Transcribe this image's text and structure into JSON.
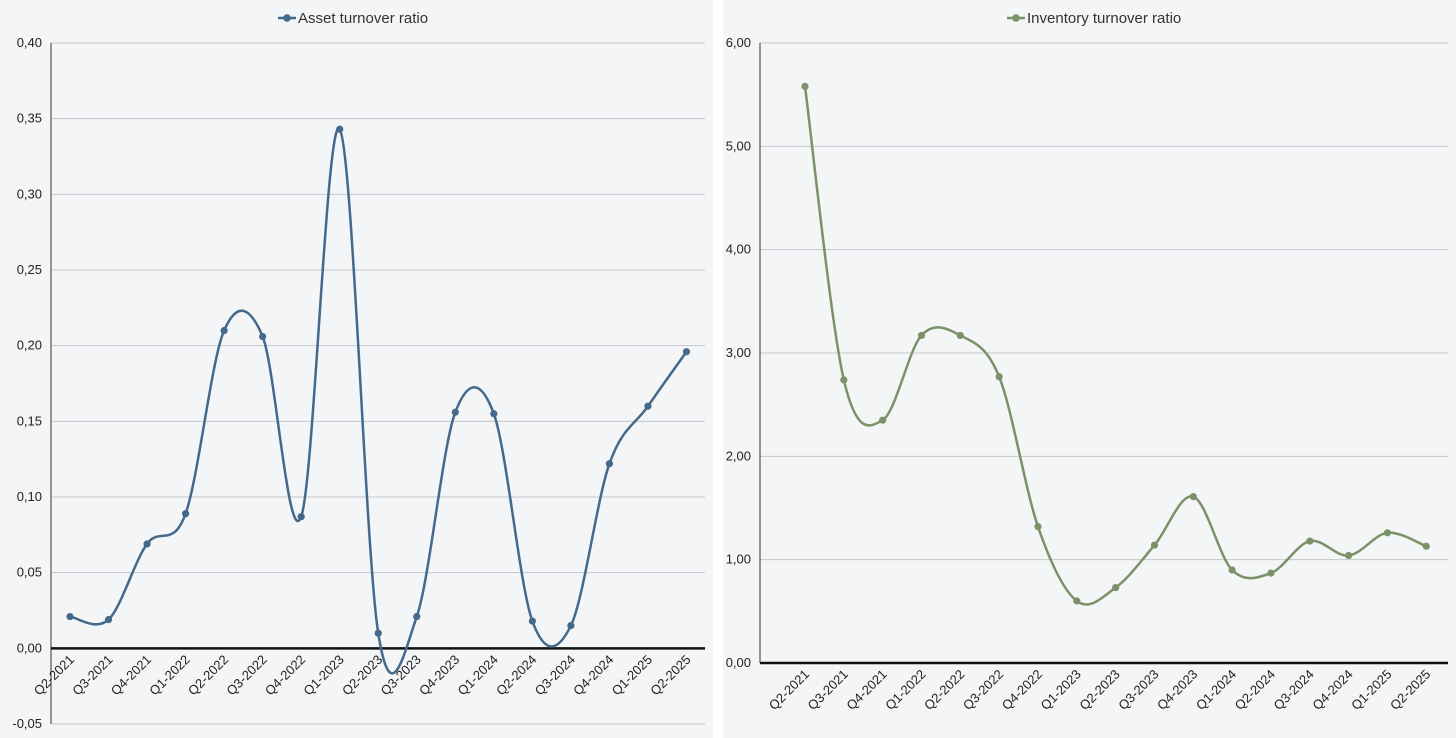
{
  "chart_data": [
    {
      "type": "line",
      "title": "",
      "smooth": true,
      "color": "#44698a",
      "legend": {
        "label": "Asset turnover ratio",
        "placement": "top-center"
      },
      "ylim": [
        -0.05,
        0.4
      ],
      "yticks": [
        "-0,05",
        "0,00",
        "0,05",
        "0,10",
        "0,15",
        "0,20",
        "0,25",
        "0,30",
        "0,35",
        "0,40"
      ],
      "ytick_values": [
        -0.05,
        0,
        0.05,
        0.1,
        0.15,
        0.2,
        0.25,
        0.3,
        0.35,
        0.4
      ],
      "grid": true,
      "categories": [
        "Q2-2021",
        "Q3-2021",
        "Q4-2021",
        "Q1-2022",
        "Q2-2022",
        "Q3-2022",
        "Q4-2022",
        "Q1-2023",
        "Q2-2023",
        "Q3-2023",
        "Q4-2023",
        "Q1-2024",
        "Q2-2024",
        "Q3-2024",
        "Q4-2024",
        "Q1-2025",
        "Q2-2025"
      ],
      "series": [
        {
          "name": "Asset turnover ratio",
          "values": [
            0.021,
            0.019,
            0.069,
            0.089,
            0.21,
            0.206,
            0.087,
            0.343,
            0.01,
            0.021,
            0.156,
            0.155,
            0.018,
            0.015,
            0.122,
            0.16,
            0.196
          ]
        }
      ]
    },
    {
      "type": "line",
      "title": "",
      "smooth": true,
      "color": "#7b9168",
      "legend": {
        "label": "Inventory turnover ratio",
        "placement": "top-center"
      },
      "ylim": [
        0,
        6
      ],
      "yticks": [
        "0,00",
        "1,00",
        "2,00",
        "3,00",
        "4,00",
        "5,00",
        "6,00"
      ],
      "ytick_values": [
        0,
        1,
        2,
        3,
        4,
        5,
        6
      ],
      "grid": true,
      "categories": [
        "Q2-2021",
        "Q3-2021",
        "Q4-2021",
        "Q1-2022",
        "Q2-2022",
        "Q3-2022",
        "Q4-2022",
        "Q1-2023",
        "Q2-2023",
        "Q3-2023",
        "Q4-2023",
        "Q1-2024",
        "Q2-2024",
        "Q3-2024",
        "Q4-2024",
        "Q1-2025",
        "Q2-2025"
      ],
      "series": [
        {
          "name": "Inventory turnover ratio",
          "values": [
            5.58,
            2.74,
            2.35,
            3.17,
            3.17,
            2.77,
            1.32,
            0.6,
            0.73,
            1.14,
            1.61,
            0.9,
            0.87,
            1.18,
            1.04,
            1.26,
            1.13
          ]
        }
      ]
    }
  ]
}
